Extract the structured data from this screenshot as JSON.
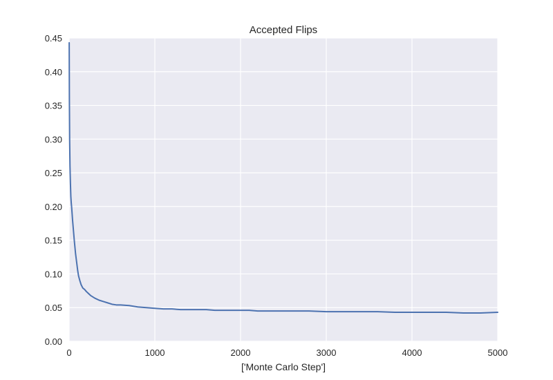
{
  "chart_data": {
    "type": "line",
    "title": "Accepted Flips",
    "xlabel": "['Monte Carlo Step']",
    "ylabel": "",
    "xlim": [
      0,
      5000
    ],
    "ylim": [
      0.0,
      0.45
    ],
    "x_ticks": [
      "0",
      "1000",
      "2000",
      "3000",
      "4000",
      "5000"
    ],
    "y_ticks": [
      "0.00",
      "0.05",
      "0.10",
      "0.15",
      "0.20",
      "0.25",
      "0.30",
      "0.35",
      "0.40",
      "0.45"
    ],
    "grid": true,
    "legend": "none",
    "colors": {
      "background": "#eaeaf2",
      "grid": "#ffffff",
      "line": "#4c72b0"
    },
    "series": [
      {
        "x": [
          1,
          3,
          6,
          10,
          15,
          20,
          25,
          30,
          40,
          50,
          60,
          75,
          90,
          100,
          110,
          125,
          140,
          160,
          180,
          200,
          250,
          300,
          350,
          400,
          450,
          500,
          550,
          600,
          700,
          800,
          900,
          1000,
          1100,
          1200,
          1300,
          1400,
          1500,
          1600,
          1700,
          1800,
          1900,
          2000,
          2100,
          2200,
          2300,
          2400,
          2500,
          2600,
          2800,
          3000,
          3200,
          3400,
          3600,
          3800,
          4000,
          4200,
          4400,
          4600,
          4800,
          5000
        ],
        "y": [
          0.443,
          0.36,
          0.3,
          0.26,
          0.235,
          0.215,
          0.205,
          0.198,
          0.18,
          0.165,
          0.15,
          0.13,
          0.115,
          0.105,
          0.097,
          0.09,
          0.084,
          0.079,
          0.077,
          0.074,
          0.068,
          0.064,
          0.061,
          0.059,
          0.057,
          0.055,
          0.054,
          0.054,
          0.053,
          0.051,
          0.05,
          0.049,
          0.048,
          0.048,
          0.047,
          0.047,
          0.047,
          0.047,
          0.046,
          0.046,
          0.046,
          0.046,
          0.046,
          0.045,
          0.045,
          0.045,
          0.045,
          0.045,
          0.045,
          0.044,
          0.044,
          0.044,
          0.044,
          0.043,
          0.043,
          0.043,
          0.043,
          0.042,
          0.042,
          0.043
        ]
      }
    ]
  }
}
